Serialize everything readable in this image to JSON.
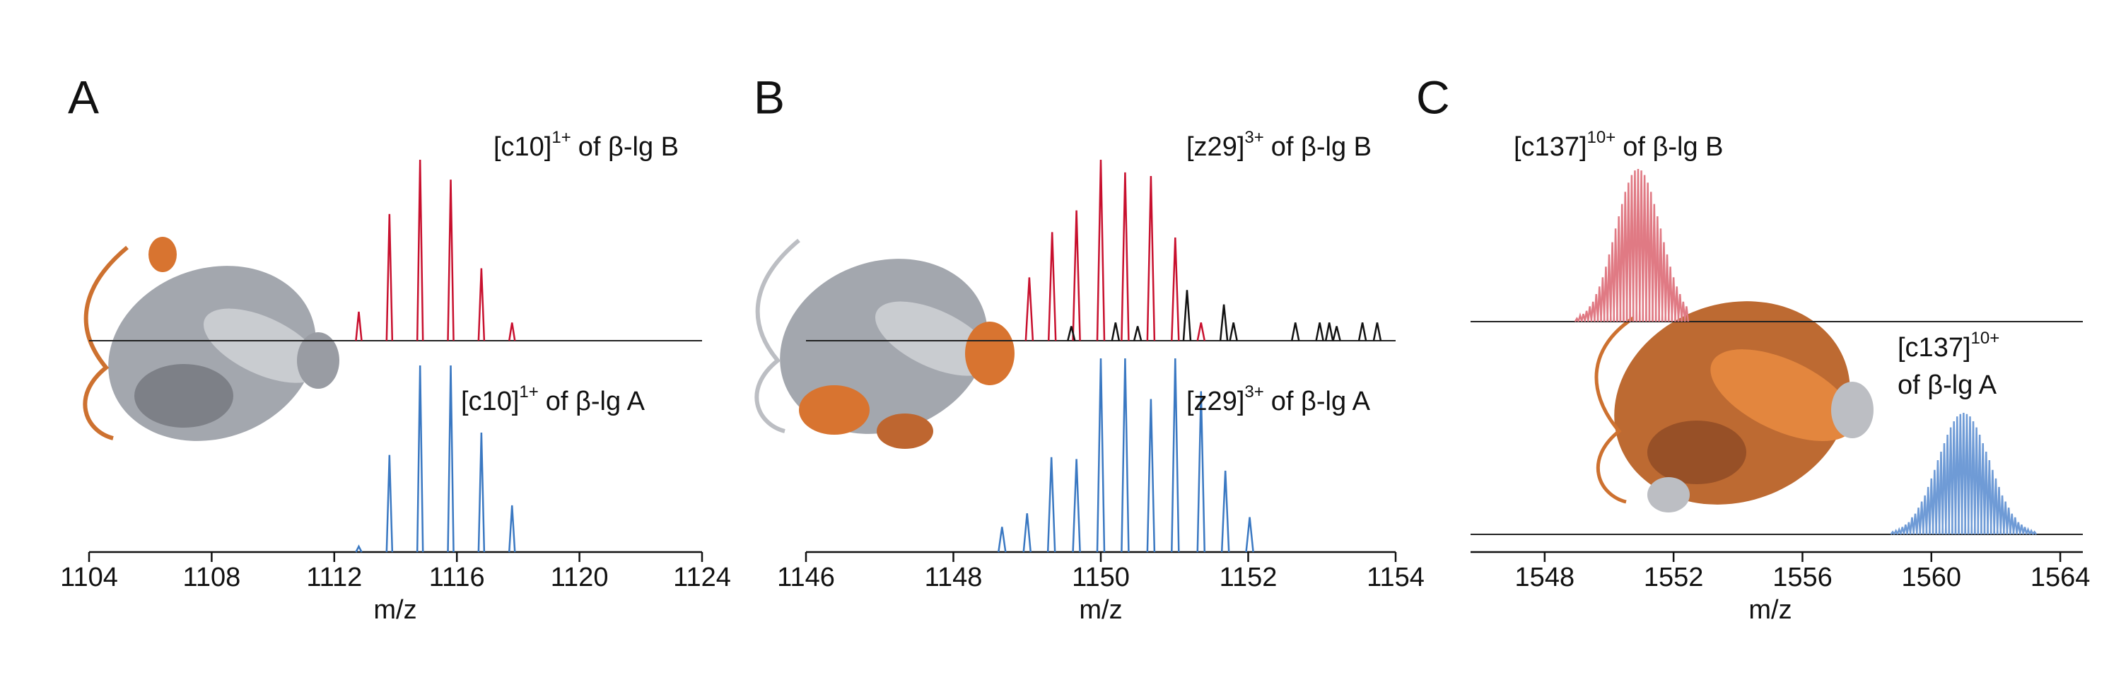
{
  "chart_data": [
    {
      "type": "spectrum",
      "panel": "A",
      "xlabel": "m/z",
      "xlim": [
        1104,
        1124
      ],
      "xticks": [
        1104,
        1108,
        1112,
        1116,
        1120,
        1124
      ],
      "series": [
        {
          "label": {
            "ion": "[c10]",
            "charge": "1+",
            "text": "of β-lg B"
          },
          "color": "#c8102e",
          "x": [
            1112.8,
            1113.8,
            1114.8,
            1115.8,
            1116.8,
            1117.8
          ],
          "values": [
            16,
            70,
            100,
            89,
            40,
            10
          ]
        },
        {
          "label": {
            "ion": "[c10]",
            "charge": "1+",
            "text": "of β-lg A"
          },
          "color": "#3a78c2",
          "x": [
            1112.8,
            1113.8,
            1114.8,
            1115.8,
            1116.8,
            1117.8
          ],
          "values": [
            3,
            52,
            100,
            100,
            64,
            25
          ]
        }
      ]
    },
    {
      "type": "spectrum",
      "panel": "B",
      "xlabel": "m/z",
      "xlim": [
        1146,
        1154
      ],
      "xticks": [
        1146,
        1148,
        1150,
        1152,
        1154
      ],
      "series": [
        {
          "label": {
            "ion": "[z29]",
            "charge": "3+",
            "text": "of β-lg B"
          },
          "color": "#c8102e",
          "x": [
            1149.03,
            1149.34,
            1149.67,
            1150.0,
            1150.33,
            1150.68,
            1151.01,
            1151.36
          ],
          "values": [
            35,
            60,
            72,
            100,
            93,
            91,
            57,
            10
          ]
        },
        {
          "label": {
            "ion": "[z29]",
            "charge": "3+",
            "text": "of β-lg A"
          },
          "color": "#3a78c2",
          "x": [
            1148.66,
            1149.0,
            1149.33,
            1149.67,
            1150.0,
            1150.33,
            1150.68,
            1151.01,
            1151.36,
            1151.69,
            1152.02
          ],
          "values": [
            13,
            20,
            49,
            48,
            100,
            100,
            79,
            100,
            83,
            42,
            18
          ]
        },
        {
          "color": "#111111",
          "x": [
            1149.6,
            1150.2,
            1150.5,
            1151.17,
            1151.67,
            1151.8,
            1152.64,
            1152.97,
            1153.1,
            1153.2,
            1153.55,
            1153.75
          ],
          "values": [
            8,
            10,
            8,
            28,
            20,
            10,
            10,
            10,
            10,
            8,
            10,
            10
          ]
        }
      ]
    },
    {
      "type": "spectrum",
      "panel": "C",
      "xlabel": "m/z",
      "xlim": [
        1545.7,
        1564.7
      ],
      "xticks": [
        1548,
        1552,
        1556,
        1560,
        1564
      ],
      "series": [
        {
          "label": {
            "ion": "[c137]",
            "charge": "10+",
            "text": "of β-lg B"
          },
          "color": "#e07a84",
          "x": [
            1549.0,
            1549.1,
            1549.2,
            1549.3,
            1549.4,
            1549.5,
            1549.6,
            1549.7,
            1549.8,
            1549.9,
            1550.0,
            1550.1,
            1550.2,
            1550.3,
            1550.4,
            1550.5,
            1550.6,
            1550.7,
            1550.8,
            1550.9,
            1551.0,
            1551.1,
            1551.2,
            1551.3,
            1551.4,
            1551.5,
            1551.6,
            1551.7,
            1551.8,
            1551.9,
            1552.0,
            1552.1,
            1552.2,
            1552.3,
            1552.4
          ],
          "values": [
            2,
            4,
            5,
            7,
            10,
            13,
            18,
            23,
            29,
            36,
            44,
            52,
            61,
            69,
            77,
            85,
            91,
            96,
            99,
            100,
            99,
            96,
            91,
            85,
            77,
            69,
            61,
            52,
            44,
            36,
            29,
            23,
            18,
            13,
            10
          ]
        },
        {
          "label": {
            "ion": "[c137]",
            "charge": "10+",
            "text": "of β-lg A"
          },
          "color": "#6f9bd6",
          "x": [
            1558.8,
            1558.9,
            1559.0,
            1559.1,
            1559.2,
            1559.3,
            1559.4,
            1559.5,
            1559.6,
            1559.7,
            1559.8,
            1559.9,
            1560.0,
            1560.1,
            1560.2,
            1560.3,
            1560.4,
            1560.5,
            1560.6,
            1560.7,
            1560.8,
            1560.9,
            1561.0,
            1561.1,
            1561.2,
            1561.3,
            1561.4,
            1561.5,
            1561.6,
            1561.7,
            1561.8,
            1561.9,
            1562.0,
            1562.1,
            1562.2,
            1562.3,
            1562.4,
            1562.5,
            1562.6,
            1562.7,
            1562.8,
            1562.9,
            1563.0,
            1563.1,
            1563.2
          ],
          "values": [
            2,
            3,
            4,
            6,
            8,
            10,
            14,
            17,
            22,
            27,
            32,
            39,
            46,
            53,
            61,
            68,
            75,
            82,
            88,
            93,
            97,
            99,
            100,
            99,
            97,
            93,
            88,
            82,
            75,
            68,
            61,
            53,
            46,
            39,
            32,
            27,
            22,
            17,
            14,
            10,
            8,
            6,
            4,
            3,
            2
          ]
        }
      ]
    }
  ]
}
